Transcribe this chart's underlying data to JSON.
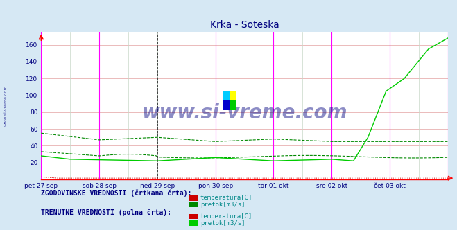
{
  "title": "Krka - Soteska",
  "title_color": "#000080",
  "bg_color": "#d6e8f4",
  "plot_bg_color": "#ffffff",
  "watermark_text": "www.si-vreme.com",
  "watermark_color": "#000080",
  "sidebar_text": "www.si-vreme.com",
  "sidebar_color": "#000080",
  "x_ticks": [
    0,
    48,
    96,
    144,
    192,
    240,
    288
  ],
  "x_tick_labels": [
    "pet 27 sep",
    "sob 28 sep",
    "ned 29 sep",
    "pon 30 sep",
    "tor 01 okt",
    "sre 02 okt",
    "čet 03 okt"
  ],
  "ylim": [
    0,
    175
  ],
  "y_ticks": [
    20,
    40,
    60,
    80,
    100,
    120,
    140,
    160
  ],
  "grid_h_color": "#e8b0b0",
  "grid_v_color": "#c8d8c8",
  "vline_magenta_positions": [
    0,
    48,
    144,
    192,
    240,
    288,
    336
  ],
  "vline_dark_positions": [
    96
  ],
  "hist_temp_color": "#cc0000",
  "hist_pretok_color": "#008800",
  "curr_temp_color": "#cc0000",
  "curr_pretok_color": "#00cc00",
  "legend_label1": "ZGODOVINSKE VREDNOSTI (črtkana črta):",
  "legend_label2": "TRENUTNE VREDNOSTI (polna črta):",
  "legend_temp": "temperatura[C]",
  "legend_pretok": "pretok[m3/s]",
  "n_points": 337
}
